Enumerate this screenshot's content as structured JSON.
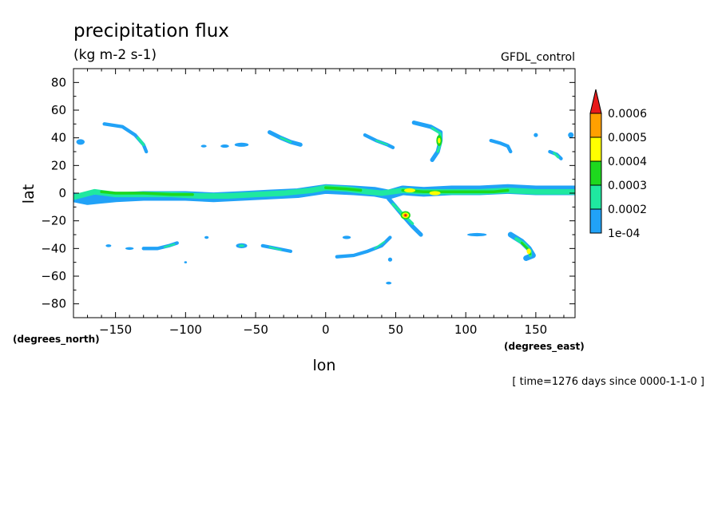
{
  "chart_data": {
    "type": "contour",
    "title": "precipitation flux",
    "units": "(kg m-2 s-1)",
    "run_label": "GFDL_control",
    "xlabel": "lon",
    "ylabel": "lat",
    "x_unit_label": "(degrees_east)",
    "y_unit_label": "(degrees_north)",
    "time_label": "[ time=1276 days since 0000-1-1-0 ]",
    "xlim": [
      -180,
      178
    ],
    "ylim": [
      -90,
      90
    ],
    "x_ticks": [
      -150,
      -100,
      -50,
      0,
      50,
      100,
      150
    ],
    "x_tick_labels": [
      "−150",
      "−100",
      "−50",
      "0",
      "50",
      "100",
      "150"
    ],
    "y_ticks": [
      -80,
      -60,
      -40,
      -20,
      0,
      20,
      40,
      60,
      80
    ],
    "y_tick_labels": [
      "−80",
      "−60",
      "−40",
      "−20",
      "0",
      "20",
      "40",
      "60",
      "80"
    ],
    "levels": [
      0.0001,
      0.0002,
      0.0003,
      0.0004,
      0.0005,
      0.0006
    ],
    "level_labels": [
      "1e-04",
      "0.0002",
      "0.0003",
      "0.0004",
      "0.0005",
      "0.0006"
    ],
    "level_colors": [
      "#21a2f7",
      "#1fe8a0",
      "#1ed81e",
      "#ffff00",
      "#ffa000",
      "#e81a1a"
    ],
    "features": [
      {
        "level": 1,
        "shape": "band",
        "points": [
          [
            -180,
            -3
          ],
          [
            -170,
            -5
          ],
          [
            -150,
            -3
          ],
          [
            -130,
            -2
          ],
          [
            -100,
            -2
          ],
          [
            -80,
            -3
          ],
          [
            -60,
            -2
          ],
          [
            -40,
            -1
          ],
          [
            -20,
            0
          ],
          [
            0,
            3
          ],
          [
            20,
            2
          ],
          [
            35,
            1
          ],
          [
            45,
            -1
          ],
          [
            55,
            2
          ],
          [
            70,
            1
          ],
          [
            90,
            2
          ],
          [
            110,
            2
          ],
          [
            130,
            3
          ],
          [
            150,
            2
          ],
          [
            170,
            2
          ],
          [
            178,
            2
          ]
        ],
        "width": 7
      },
      {
        "level": 2,
        "shape": "band",
        "points": [
          [
            -180,
            -3
          ],
          [
            -165,
            1
          ],
          [
            -150,
            -1
          ],
          [
            -130,
            -1
          ],
          [
            -110,
            -1
          ],
          [
            -90,
            -2
          ],
          [
            -70,
            -2
          ],
          [
            -50,
            -1
          ],
          [
            -30,
            0
          ],
          [
            -10,
            2
          ],
          [
            0,
            4
          ],
          [
            15,
            3
          ],
          [
            30,
            1
          ],
          [
            40,
            0
          ],
          [
            55,
            2
          ],
          [
            70,
            1
          ],
          [
            90,
            1
          ],
          [
            110,
            1
          ],
          [
            130,
            2
          ],
          [
            150,
            1
          ],
          [
            170,
            1
          ],
          [
            178,
            1
          ]
        ],
        "width": 4
      },
      {
        "level": 3,
        "shape": "band",
        "points": [
          [
            -160,
            1
          ],
          [
            -150,
            0
          ],
          [
            -130,
            0
          ],
          [
            -110,
            -1
          ],
          [
            -95,
            -1
          ]
        ],
        "width": 2
      },
      {
        "level": 3,
        "shape": "band",
        "points": [
          [
            0,
            4
          ],
          [
            15,
            3
          ],
          [
            25,
            2
          ]
        ],
        "width": 2
      },
      {
        "level": 3,
        "shape": "band",
        "points": [
          [
            55,
            2
          ],
          [
            70,
            1
          ],
          [
            85,
            1
          ],
          [
            100,
            1
          ],
          [
            120,
            1
          ],
          [
            130,
            2
          ]
        ],
        "width": 2
      },
      {
        "level": 4,
        "shape": "blob",
        "center": [
          60,
          2
        ],
        "rx": 4,
        "ry": 1.5
      },
      {
        "level": 4,
        "shape": "blob",
        "center": [
          78,
          0
        ],
        "rx": 4,
        "ry": 1.5
      },
      {
        "level": 1,
        "shape": "band",
        "points": [
          [
            45,
            -4
          ],
          [
            50,
            -10
          ],
          [
            55,
            -16
          ],
          [
            62,
            -24
          ],
          [
            68,
            -30
          ]
        ],
        "width": 3
      },
      {
        "level": 2,
        "shape": "band",
        "points": [
          [
            48,
            -8
          ],
          [
            55,
            -15
          ],
          [
            62,
            -22
          ]
        ],
        "width": 2
      },
      {
        "level": 3,
        "shape": "blob",
        "center": [
          57,
          -16
        ],
        "rx": 3.5,
        "ry": 3
      },
      {
        "level": 4,
        "shape": "blob",
        "center": [
          57,
          -16
        ],
        "rx": 2.5,
        "ry": 2
      },
      {
        "level": 5,
        "shape": "blob",
        "center": [
          57,
          -16
        ],
        "rx": 1.5,
        "ry": 1.3
      },
      {
        "level": 6,
        "shape": "blob",
        "center": [
          57,
          -16
        ],
        "rx": 0.8,
        "ry": 0.8
      },
      {
        "level": 1,
        "shape": "band",
        "points": [
          [
            -158,
            50
          ],
          [
            -145,
            48
          ],
          [
            -136,
            42
          ],
          [
            -130,
            35
          ],
          [
            -128,
            30
          ]
        ],
        "width": 2.5
      },
      {
        "level": 2,
        "shape": "band",
        "points": [
          [
            -134,
            40
          ],
          [
            -130,
            35
          ]
        ],
        "width": 2
      },
      {
        "level": 1,
        "shape": "band",
        "points": [
          [
            -40,
            44
          ],
          [
            -32,
            40
          ],
          [
            -25,
            37
          ],
          [
            -18,
            35
          ]
        ],
        "width": 3
      },
      {
        "level": 2,
        "shape": "band",
        "points": [
          [
            -32,
            40
          ],
          [
            -25,
            37
          ]
        ],
        "width": 1.5
      },
      {
        "level": 1,
        "shape": "band",
        "points": [
          [
            28,
            42
          ],
          [
            36,
            38
          ],
          [
            44,
            35
          ],
          [
            48,
            33
          ]
        ],
        "width": 2.5
      },
      {
        "level": 2,
        "shape": "band",
        "points": [
          [
            36,
            38
          ],
          [
            44,
            35
          ]
        ],
        "width": 1.2
      },
      {
        "level": 1,
        "shape": "band",
        "points": [
          [
            63,
            51
          ],
          [
            75,
            48
          ],
          [
            82,
            44
          ],
          [
            82,
            38
          ],
          [
            80,
            30
          ],
          [
            76,
            24
          ]
        ],
        "width": 3
      },
      {
        "level": 2,
        "shape": "band",
        "points": [
          [
            76,
            47
          ],
          [
            82,
            43
          ],
          [
            82,
            36
          ],
          [
            80,
            30
          ]
        ],
        "width": 1.8
      },
      {
        "level": 3,
        "shape": "blob",
        "center": [
          81,
          38
        ],
        "rx": 2,
        "ry": 4
      },
      {
        "level": 4,
        "shape": "blob",
        "center": [
          81,
          38
        ],
        "rx": 1,
        "ry": 2
      },
      {
        "level": 1,
        "shape": "band",
        "points": [
          [
            118,
            38
          ],
          [
            125,
            36
          ],
          [
            130,
            34
          ],
          [
            132,
            30
          ]
        ],
        "width": 2.5
      },
      {
        "level": 1,
        "shape": "band",
        "points": [
          [
            160,
            30
          ],
          [
            165,
            28
          ],
          [
            168,
            25
          ]
        ],
        "width": 2.5
      },
      {
        "level": 2,
        "shape": "band",
        "points": [
          [
            163,
            29
          ],
          [
            166,
            26
          ]
        ],
        "width": 1.8
      },
      {
        "level": 1,
        "shape": "blob",
        "center": [
          -60,
          35
        ],
        "rx": 5,
        "ry": 1.5
      },
      {
        "level": 1,
        "shape": "blob",
        "center": [
          -72,
          34
        ],
        "rx": 3,
        "ry": 1.2
      },
      {
        "level": 1,
        "shape": "blob",
        "center": [
          -87,
          34
        ],
        "rx": 2,
        "ry": 1
      },
      {
        "level": 1,
        "shape": "blob",
        "center": [
          -175,
          37
        ],
        "rx": 3,
        "ry": 2
      },
      {
        "level": 1,
        "shape": "blob",
        "center": [
          175,
          42
        ],
        "rx": 2,
        "ry": 2
      },
      {
        "level": 1,
        "shape": "blob",
        "center": [
          150,
          42
        ],
        "rx": 1.5,
        "ry": 1.5
      },
      {
        "level": 1,
        "shape": "band",
        "points": [
          [
            -130,
            -40
          ],
          [
            -120,
            -40
          ],
          [
            -112,
            -38
          ],
          [
            -106,
            -36
          ]
        ],
        "width": 2.5
      },
      {
        "level": 2,
        "shape": "band",
        "points": [
          [
            -115,
            -39
          ],
          [
            -108,
            -37
          ]
        ],
        "width": 1.3
      },
      {
        "level": 1,
        "shape": "blob",
        "center": [
          -60,
          -38
        ],
        "rx": 4,
        "ry": 1.8
      },
      {
        "level": 2,
        "shape": "blob",
        "center": [
          -60,
          -38
        ],
        "rx": 2,
        "ry": 0.9
      },
      {
        "level": 1,
        "shape": "band",
        "points": [
          [
            -45,
            -38
          ],
          [
            -35,
            -40
          ],
          [
            -25,
            -42
          ]
        ],
        "width": 2.5
      },
      {
        "level": 2,
        "shape": "band",
        "points": [
          [
            -40,
            -39
          ],
          [
            -32,
            -41
          ]
        ],
        "width": 1.2
      },
      {
        "level": 1,
        "shape": "band",
        "points": [
          [
            8,
            -46
          ],
          [
            20,
            -45
          ],
          [
            30,
            -42
          ],
          [
            40,
            -38
          ],
          [
            46,
            -32
          ]
        ],
        "width": 2.5
      },
      {
        "level": 2,
        "shape": "band",
        "points": [
          [
            35,
            -40
          ],
          [
            42,
            -35
          ]
        ],
        "width": 1.2
      },
      {
        "level": 1,
        "shape": "blob",
        "center": [
          15,
          -32
        ],
        "rx": 3,
        "ry": 1.2
      },
      {
        "level": 1,
        "shape": "band",
        "points": [
          [
            132,
            -30
          ],
          [
            140,
            -35
          ],
          [
            145,
            -40
          ],
          [
            148,
            -45
          ],
          [
            143,
            -47
          ]
        ],
        "width": 4
      },
      {
        "level": 2,
        "shape": "band",
        "points": [
          [
            136,
            -33
          ],
          [
            142,
            -37
          ],
          [
            146,
            -42
          ],
          [
            146,
            -45
          ]
        ],
        "width": 2.5
      },
      {
        "level": 3,
        "shape": "band",
        "points": [
          [
            140,
            -36
          ],
          [
            145,
            -41
          ],
          [
            146,
            -44
          ]
        ],
        "width": 1.6
      },
      {
        "level": 4,
        "shape": "blob",
        "center": [
          145,
          -42
        ],
        "rx": 1.5,
        "ry": 2
      },
      {
        "level": 1,
        "shape": "blob",
        "center": [
          108,
          -30
        ],
        "rx": 7,
        "ry": 1.2
      },
      {
        "level": 1,
        "shape": "blob",
        "center": [
          -140,
          -40
        ],
        "rx": 3,
        "ry": 1
      },
      {
        "level": 1,
        "shape": "blob",
        "center": [
          45,
          -65
        ],
        "rx": 2,
        "ry": 1
      },
      {
        "level": 1,
        "shape": "blob",
        "center": [
          46,
          -48
        ],
        "rx": 1.5,
        "ry": 1.5
      },
      {
        "level": 1,
        "shape": "blob",
        "center": [
          -100,
          -50
        ],
        "rx": 1,
        "ry": 0.8
      },
      {
        "level": 1,
        "shape": "blob",
        "center": [
          -155,
          -38
        ],
        "rx": 2,
        "ry": 1
      },
      {
        "level": 1,
        "shape": "blob",
        "center": [
          -85,
          -32
        ],
        "rx": 1.5,
        "ry": 1
      }
    ]
  }
}
